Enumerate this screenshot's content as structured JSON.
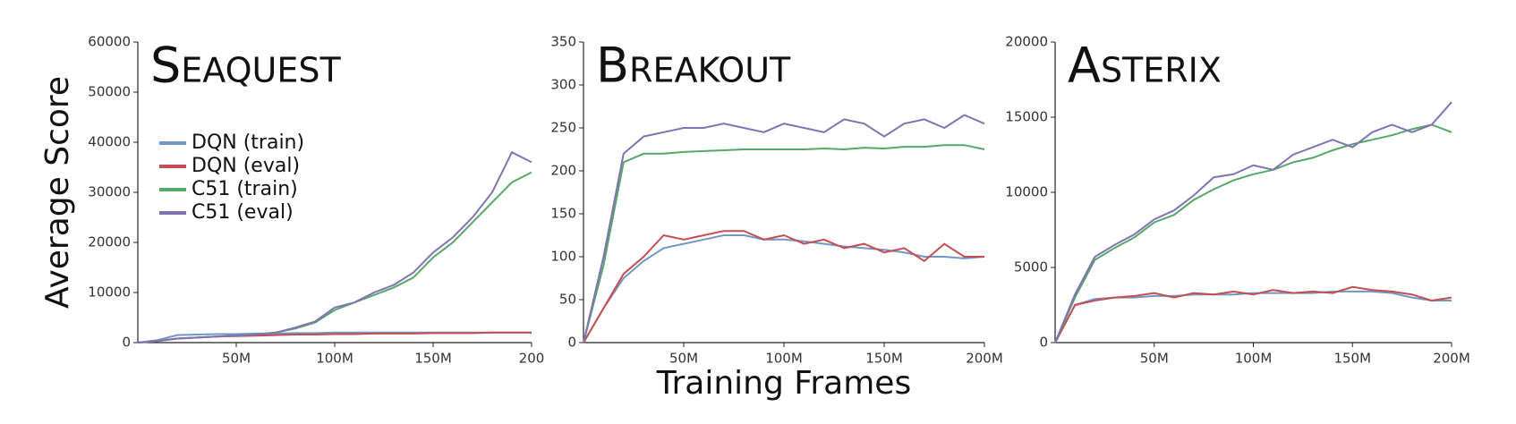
{
  "chart_data": [
    {
      "type": "line",
      "title": "Seaquest",
      "y_label": "Average Score",
      "legend": "upper left",
      "x": [
        0,
        10,
        20,
        30,
        40,
        50,
        60,
        70,
        80,
        90,
        100,
        110,
        120,
        130,
        140,
        150,
        160,
        170,
        180,
        190,
        200
      ],
      "xlim": [
        0,
        200
      ],
      "xticks": [
        {
          "value": 50,
          "label": "50M"
        },
        {
          "value": 100,
          "label": "100M"
        },
        {
          "value": 150,
          "label": "150M"
        },
        {
          "value": 200,
          "label": "200"
        }
      ],
      "ylim": [
        0,
        60000
      ],
      "yticks": [
        0,
        10000,
        20000,
        30000,
        40000,
        50000,
        60000
      ],
      "series": [
        {
          "name": "DQN (train)",
          "color": "#7096c8",
          "values": [
            0,
            500,
            1500,
            1600,
            1700,
            1700,
            1800,
            1800,
            1900,
            1900,
            2000,
            2000,
            2000,
            2000,
            2000,
            2000,
            2000,
            2000,
            2000,
            2000,
            2000
          ]
        },
        {
          "name": "DQN (eval)",
          "color": "#c44e52",
          "values": [
            0,
            300,
            800,
            1000,
            1200,
            1300,
            1400,
            1500,
            1600,
            1600,
            1700,
            1700,
            1800,
            1800,
            1800,
            1900,
            1900,
            1900,
            2000,
            2000,
            2000
          ]
        },
        {
          "name": "C51 (train)",
          "color": "#55a868",
          "values": [
            0,
            300,
            800,
            1000,
            1200,
            1400,
            1600,
            2000,
            2800,
            4000,
            6500,
            8000,
            9500,
            11000,
            13000,
            17000,
            20000,
            24000,
            28000,
            32000,
            34000
          ]
        },
        {
          "name": "C51 (eval)",
          "color": "#8172b2",
          "values": [
            0,
            300,
            800,
            1000,
            1200,
            1400,
            1600,
            2000,
            3000,
            4200,
            7000,
            8000,
            10000,
            11500,
            14000,
            18000,
            21000,
            25000,
            30000,
            38000,
            36000
          ]
        }
      ]
    },
    {
      "type": "line",
      "title": "Breakout",
      "x_label": "Training Frames",
      "x": [
        0,
        10,
        20,
        30,
        40,
        50,
        60,
        70,
        80,
        90,
        100,
        110,
        120,
        130,
        140,
        150,
        160,
        170,
        180,
        190,
        200
      ],
      "xlim": [
        0,
        200
      ],
      "xticks": [
        {
          "value": 50,
          "label": "50M"
        },
        {
          "value": 100,
          "label": "100M"
        },
        {
          "value": 150,
          "label": "150M"
        },
        {
          "value": 200,
          "label": "200M"
        }
      ],
      "ylim": [
        0,
        350
      ],
      "yticks": [
        0,
        50,
        100,
        150,
        200,
        250,
        300,
        350
      ],
      "series": [
        {
          "color": "#7096c8",
          "values": [
            0,
            40,
            75,
            95,
            110,
            115,
            120,
            125,
            125,
            120,
            120,
            118,
            115,
            112,
            110,
            108,
            105,
            100,
            100,
            98,
            100
          ]
        },
        {
          "color": "#c44e52",
          "values": [
            0,
            40,
            80,
            100,
            125,
            120,
            125,
            130,
            130,
            120,
            125,
            115,
            120,
            110,
            115,
            105,
            110,
            95,
            115,
            100,
            100
          ]
        },
        {
          "color": "#55a868",
          "values": [
            0,
            90,
            210,
            220,
            220,
            222,
            223,
            224,
            225,
            225,
            225,
            225,
            226,
            225,
            227,
            226,
            228,
            228,
            230,
            230,
            225
          ]
        },
        {
          "color": "#8172b2",
          "values": [
            0,
            100,
            220,
            240,
            245,
            250,
            250,
            255,
            250,
            245,
            255,
            250,
            245,
            260,
            255,
            240,
            255,
            260,
            250,
            265,
            255
          ]
        }
      ]
    },
    {
      "type": "line",
      "title": "Asterix",
      "x": [
        0,
        10,
        20,
        30,
        40,
        50,
        60,
        70,
        80,
        90,
        100,
        110,
        120,
        130,
        140,
        150,
        160,
        170,
        180,
        190,
        200
      ],
      "xlim": [
        0,
        200
      ],
      "xticks": [
        {
          "value": 50,
          "label": "50M"
        },
        {
          "value": 100,
          "label": "100M"
        },
        {
          "value": 150,
          "label": "150M"
        },
        {
          "value": 200,
          "label": "200M"
        }
      ],
      "ylim": [
        0,
        20000
      ],
      "yticks": [
        0,
        5000,
        10000,
        15000,
        20000
      ],
      "series": [
        {
          "color": "#7096c8",
          "values": [
            0,
            2500,
            2900,
            3000,
            3000,
            3100,
            3100,
            3200,
            3200,
            3200,
            3300,
            3300,
            3300,
            3300,
            3400,
            3400,
            3400,
            3300,
            3000,
            2800,
            2800
          ]
        },
        {
          "color": "#c44e52",
          "values": [
            0,
            2500,
            2800,
            3000,
            3100,
            3300,
            3000,
            3300,
            3200,
            3400,
            3200,
            3500,
            3300,
            3400,
            3300,
            3700,
            3500,
            3400,
            3200,
            2800,
            3000
          ]
        },
        {
          "color": "#55a868",
          "values": [
            0,
            3000,
            5500,
            6300,
            7000,
            8000,
            8500,
            9500,
            10200,
            10800,
            11200,
            11500,
            12000,
            12300,
            12800,
            13200,
            13500,
            13800,
            14200,
            14500,
            14000
          ]
        },
        {
          "color": "#8172b2",
          "values": [
            0,
            3200,
            5700,
            6500,
            7200,
            8200,
            8800,
            9800,
            11000,
            11200,
            11800,
            11500,
            12500,
            13000,
            13500,
            13000,
            14000,
            14500,
            14000,
            14500,
            16000
          ]
        }
      ]
    }
  ]
}
